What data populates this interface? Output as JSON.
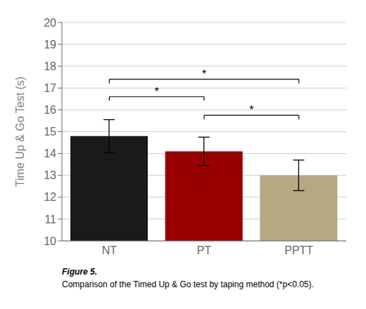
{
  "chart_data": {
    "type": "bar",
    "categories": [
      "NT",
      "PT",
      "PPTT"
    ],
    "values": [
      14.8,
      14.1,
      13.0
    ],
    "errors_lower": [
      0.75,
      0.65,
      0.7
    ],
    "errors_upper": [
      0.75,
      0.65,
      0.7
    ],
    "colors": [
      "#1a1a1a",
      "#990000",
      "#b5a882"
    ],
    "ylabel": "Time Up & Go Test (s)",
    "ylim": [
      10,
      20
    ],
    "yticks": [
      10,
      11,
      12,
      13,
      14,
      15,
      16,
      17,
      18,
      19,
      20
    ],
    "grid": true,
    "brackets": [
      {
        "from": "NT",
        "to": "PT",
        "y": 16.6,
        "label": "*"
      },
      {
        "from": "NT",
        "to": "PPTT",
        "y": 17.4,
        "label": "*"
      },
      {
        "from": "PT",
        "to": "PPTT",
        "y": 15.75,
        "label": "*"
      }
    ],
    "caption_title": "Figure 5.",
    "caption": "Comparison of the Timed Up & Go test by taping method (*p<0.05)."
  }
}
